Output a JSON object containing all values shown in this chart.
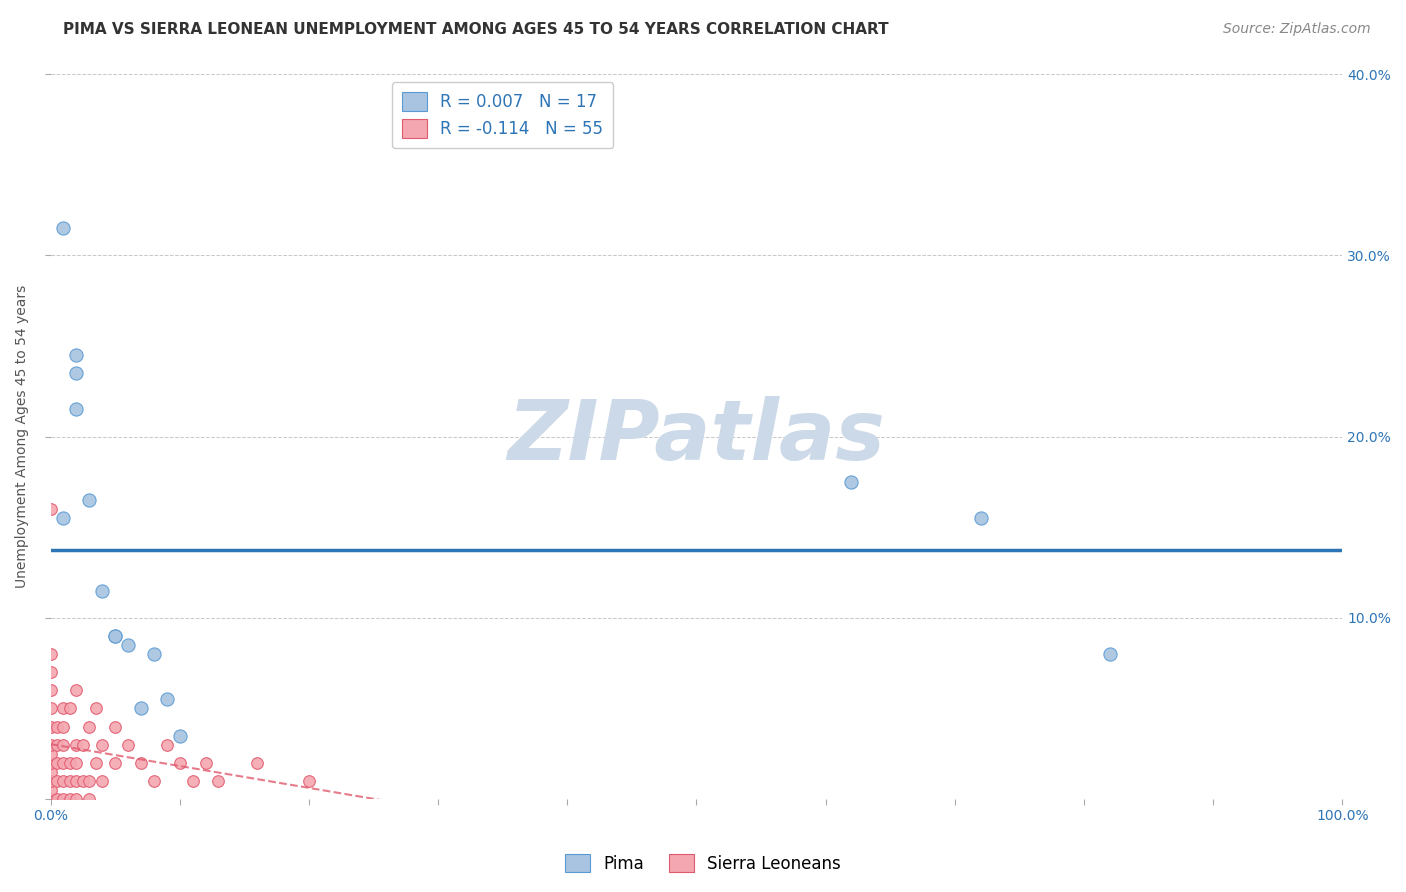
{
  "title": "PIMA VS SIERRA LEONEAN UNEMPLOYMENT AMONG AGES 45 TO 54 YEARS CORRELATION CHART",
  "source": "Source: ZipAtlas.com",
  "ylabel": "Unemployment Among Ages 45 to 54 years",
  "xlim": [
    0.0,
    1.0
  ],
  "ylim": [
    0.0,
    0.4
  ],
  "xticks": [
    0.0,
    0.1,
    0.2,
    0.3,
    0.4,
    0.5,
    0.6,
    0.7,
    0.8,
    0.9,
    1.0
  ],
  "xtick_labels": [
    "0.0%",
    "",
    "",
    "",
    "",
    "",
    "",
    "",
    "",
    "",
    "100.0%"
  ],
  "yticks": [
    0.0,
    0.1,
    0.2,
    0.3,
    0.4
  ],
  "ytick_labels_left": [
    "",
    "",
    "",
    "",
    ""
  ],
  "ytick_labels_right": [
    "",
    "10.0%",
    "20.0%",
    "30.0%",
    "40.0%"
  ],
  "pima_color": "#a8c4e0",
  "pima_edge_color": "#5b9bd5",
  "sierra_color": "#f4a7b0",
  "sierra_edge_color": "#e05a6e",
  "pima_R": 0.007,
  "pima_N": 17,
  "sierra_R": -0.114,
  "sierra_N": 55,
  "pima_line_color": "#2e75b6",
  "sierra_line_color": "#f4a7b0",
  "sierra_line_edge_color": "#e05a6e",
  "background_color": "#ffffff",
  "grid_color": "#c8c8c8",
  "watermark": "ZIPatlas",
  "watermark_color": "#ccd9e8",
  "legend_color": "#2e75b6",
  "pima_points_x": [
    0.01,
    0.01,
    0.02,
    0.02,
    0.02,
    0.03,
    0.04,
    0.05,
    0.05,
    0.06,
    0.07,
    0.08,
    0.09,
    0.1,
    0.62,
    0.72,
    0.82
  ],
  "pima_points_y": [
    0.315,
    0.155,
    0.245,
    0.235,
    0.215,
    0.165,
    0.115,
    0.09,
    0.09,
    0.085,
    0.05,
    0.08,
    0.055,
    0.035,
    0.175,
    0.155,
    0.08
  ],
  "sierra_points_x": [
    0.0,
    0.0,
    0.0,
    0.0,
    0.0,
    0.0,
    0.0,
    0.0,
    0.0,
    0.0,
    0.0,
    0.0,
    0.0,
    0.0,
    0.005,
    0.005,
    0.005,
    0.005,
    0.005,
    0.01,
    0.01,
    0.01,
    0.01,
    0.01,
    0.01,
    0.015,
    0.015,
    0.015,
    0.015,
    0.02,
    0.02,
    0.02,
    0.02,
    0.02,
    0.025,
    0.025,
    0.03,
    0.03,
    0.03,
    0.035,
    0.035,
    0.04,
    0.04,
    0.05,
    0.05,
    0.06,
    0.07,
    0.08,
    0.09,
    0.1,
    0.11,
    0.12,
    0.13,
    0.16,
    0.2
  ],
  "sierra_points_y": [
    0.0,
    0.0,
    0.005,
    0.01,
    0.015,
    0.02,
    0.025,
    0.03,
    0.04,
    0.05,
    0.06,
    0.07,
    0.08,
    0.16,
    0.0,
    0.01,
    0.02,
    0.03,
    0.04,
    0.0,
    0.01,
    0.02,
    0.03,
    0.04,
    0.05,
    0.0,
    0.01,
    0.02,
    0.05,
    0.0,
    0.01,
    0.02,
    0.03,
    0.06,
    0.01,
    0.03,
    0.0,
    0.01,
    0.04,
    0.02,
    0.05,
    0.01,
    0.03,
    0.02,
    0.04,
    0.03,
    0.02,
    0.01,
    0.03,
    0.02,
    0.01,
    0.02,
    0.01,
    0.02,
    0.01
  ],
  "title_fontsize": 11,
  "axis_label_fontsize": 10,
  "tick_fontsize": 10,
  "legend_fontsize": 12,
  "source_fontsize": 10
}
